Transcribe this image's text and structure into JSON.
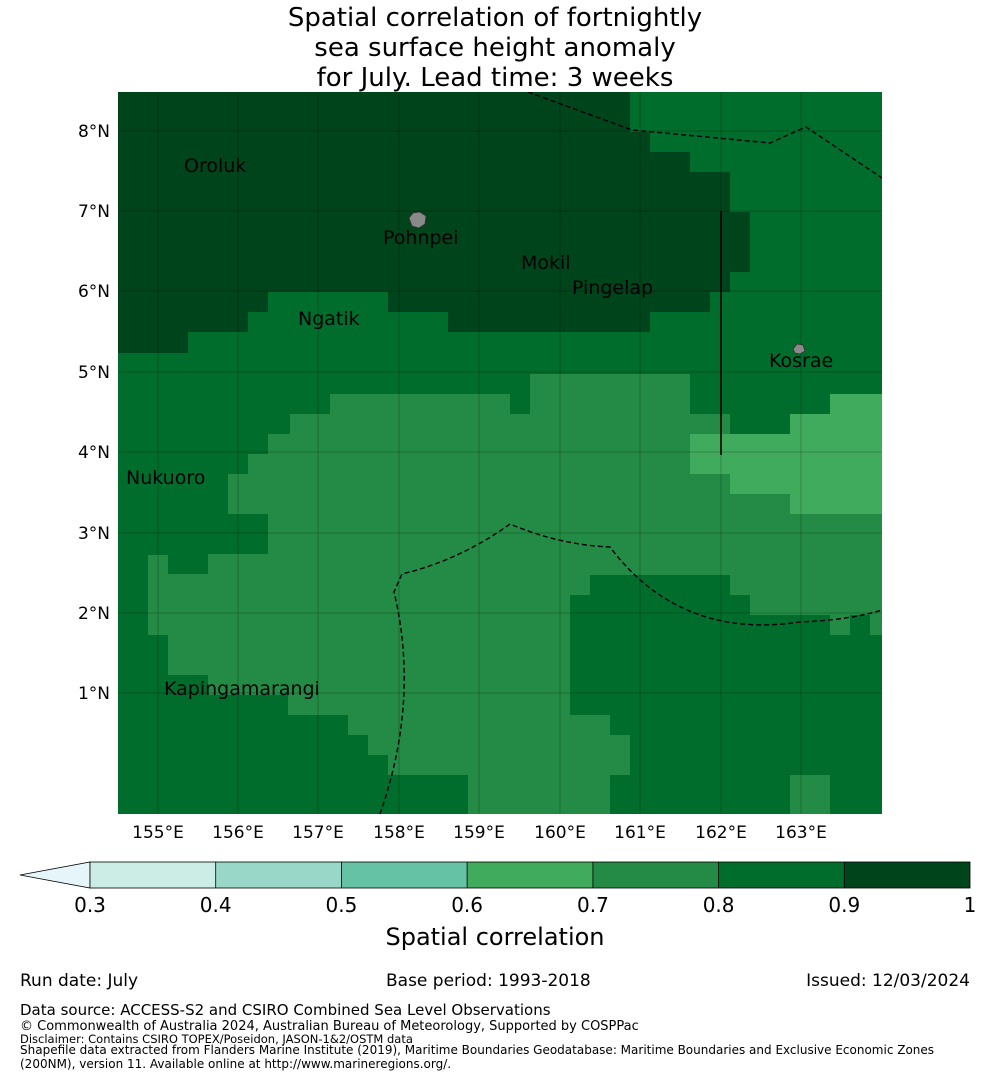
{
  "title": {
    "line1": "Spatial correlation of fortnightly",
    "line2": "sea surface height anomaly",
    "line3": "for July. Lead time: 3 weeks"
  },
  "map": {
    "lon_labels": [
      "155°E",
      "156°E",
      "157°E",
      "158°E",
      "159°E",
      "160°E",
      "161°E",
      "162°E",
      "163°E"
    ],
    "lat_labels": [
      "8°N",
      "7°N",
      "6°N",
      "5°N",
      "4°N",
      "3°N",
      "2°N",
      "1°N"
    ],
    "places": [
      {
        "name": "Oroluk",
        "icon": ""
      },
      {
        "name": "Pohnpei",
        "icon": "island-icon"
      },
      {
        "name": "Mokil",
        "icon": ""
      },
      {
        "name": "Pingelap",
        "icon": ""
      },
      {
        "name": "Ngatik",
        "icon": ""
      },
      {
        "name": "Kosrae",
        "icon": "island-icon"
      },
      {
        "name": "Nukuoro",
        "icon": ""
      },
      {
        "name": "Kapingamarangi",
        "icon": ""
      }
    ],
    "colors": {
      "c09_1": "#00441b",
      "c08_09": "#006d2c",
      "c07_08": "#238b45",
      "c06_07": "#41ab5d",
      "c05_06": "#66c2a4",
      "c04_05": "#99d8c9",
      "c03_04": "#ccece6",
      "under": "#e5f5f9"
    }
  },
  "colorbar": {
    "ticks": [
      "0.3",
      "0.4",
      "0.5",
      "0.6",
      "0.7",
      "0.8",
      "0.9",
      "1"
    ],
    "label": "Spatial correlation"
  },
  "footer": {
    "run_date": "Run date: July",
    "base_period": "Base period: 1993-2018",
    "issued": "Issued: 12/03/2024",
    "data_source": "Data source: ACCESS-S2 and CSIRO Combined Sea Level Observations",
    "copyright": "© Commonwealth of Australia 2024, Australian Bureau of Meteorology, Supported by COSPPac",
    "disclaimer": "Disclaimer: Contains CSIRO TOPEX/Poseidon, JASON-1&2/OSTM data",
    "shapefile1": "Shapefile data extracted from Flanders Marine Institute (2019), Maritime Boundaries Geodatabase: Maritime Boundaries and Exclusive Economic Zones",
    "shapefile2": "(200NM), version 11. Available online at http://www.marineregions.org/."
  }
}
